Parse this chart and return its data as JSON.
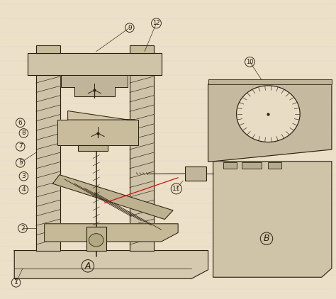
{
  "bg_color": "#ede0c8",
  "line_color": "#2a2010",
  "fig_width": 4.74,
  "fig_height": 4.22,
  "dpi": 100
}
